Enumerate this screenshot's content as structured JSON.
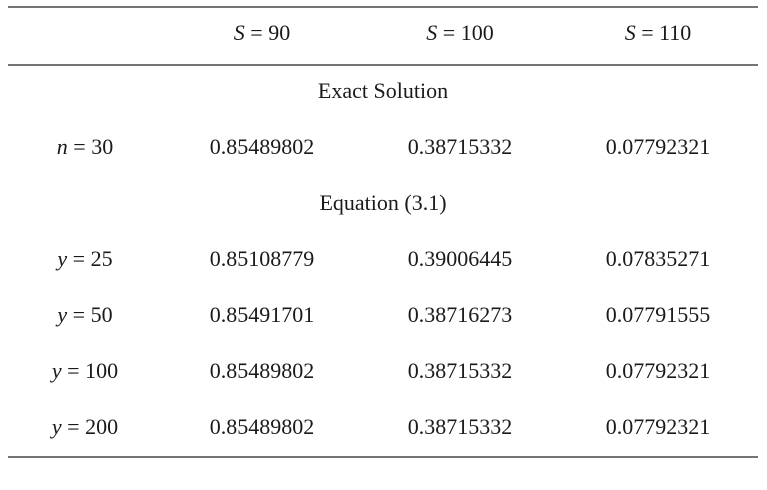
{
  "table": {
    "header": [
      {
        "var": "S",
        "rest": "= 90"
      },
      {
        "var": "S",
        "rest": "= 100"
      },
      {
        "var": "S",
        "rest": "= 110"
      }
    ],
    "sections": [
      {
        "title": "Exact Solution",
        "rows": [
          {
            "label": {
              "var": "n",
              "rest": "= 30"
            },
            "cells": [
              "0.85489802",
              "0.38715332",
              "0.07792321"
            ]
          }
        ]
      },
      {
        "title": "Equation (3.1)",
        "rows": [
          {
            "label": {
              "var": "y",
              "rest": "= 25"
            },
            "cells": [
              "0.85108779",
              "0.39006445",
              "0.07835271"
            ]
          },
          {
            "label": {
              "var": "y",
              "rest": "= 50"
            },
            "cells": [
              "0.85491701",
              "0.38716273",
              "0.07791555"
            ]
          },
          {
            "label": {
              "var": "y",
              "rest": "= 100"
            },
            "cells": [
              "0.85489802",
              "0.38715332",
              "0.07792321"
            ]
          },
          {
            "label": {
              "var": "y",
              "rest": "= 200"
            },
            "cells": [
              "0.85489802",
              "0.38715332",
              "0.07792321"
            ]
          }
        ]
      }
    ]
  }
}
